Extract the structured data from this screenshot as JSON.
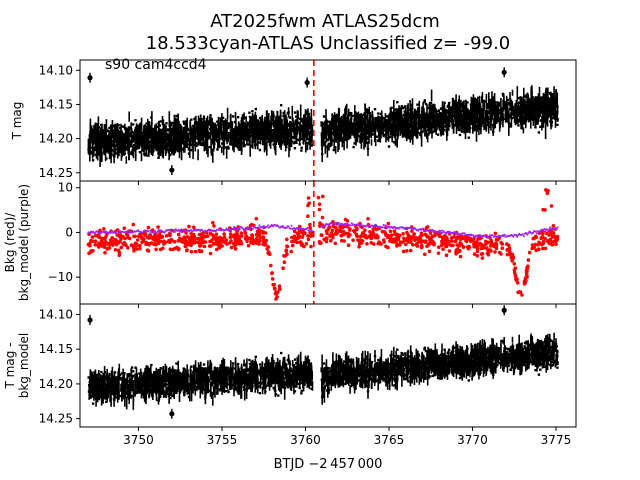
{
  "figure": {
    "title_line1": "AT2025fwm  ATLAS25dcm",
    "title_line2": "18.533cyan-ATLAS Unclassified z= -99.0",
    "annotation": "s90 cam4ccd4",
    "xlabel": "BTJD −2 457 000",
    "colors": {
      "flux": "#000000",
      "bkg": "#ff0000",
      "bkg_model": "#a020f0",
      "marker_line": "#ff0000"
    }
  },
  "chart_data": [
    {
      "type": "scatter",
      "name": "panel-top",
      "ylabel": "T mag",
      "xlim": [
        3746.5,
        3776.2
      ],
      "ylim": [
        14.262,
        14.085
      ],
      "inverted_y": true,
      "xticks": [
        3750,
        3755,
        3760,
        3765,
        3770,
        3775
      ],
      "yticks": [
        14.1,
        14.15,
        14.2,
        14.25
      ],
      "ytick_labels": [
        "14.10",
        "14.15",
        "14.20",
        "14.25"
      ],
      "vline_x": 3760.5,
      "trend": [
        [
          3747.0,
          14.205
        ],
        [
          3760.4,
          14.185
        ],
        [
          3761.0,
          14.19
        ],
        [
          3775.0,
          14.155
        ]
      ],
      "scatter_halfwidth": 0.04,
      "gap": [
        3760.45,
        3760.95
      ],
      "outliers": [
        [
          3747.1,
          14.111
        ],
        [
          3771.9,
          14.103
        ],
        [
          3760.1,
          14.118
        ],
        [
          3752.0,
          14.246
        ]
      ]
    },
    {
      "type": "scatter",
      "name": "panel-middle",
      "ylabel": "Bkg (red)/\nbkg_model (purple)",
      "xlim": [
        3746.5,
        3776.2
      ],
      "ylim": [
        -16,
        11.5
      ],
      "xticks": [
        3750,
        3755,
        3760,
        3765,
        3770,
        3775
      ],
      "yticks": [
        10,
        0,
        -10
      ],
      "ytick_labels": [
        "10",
        "0",
        "−10"
      ],
      "vline_x": 3760.5,
      "bkg_model_level": [
        [
          3747.0,
          0.0
        ],
        [
          3755.0,
          0.5
        ],
        [
          3758.0,
          1.5
        ],
        [
          3760.4,
          0.5
        ],
        [
          3761.5,
          2.0
        ],
        [
          3766.0,
          1.0
        ],
        [
          3771.0,
          -1.0
        ],
        [
          3773.0,
          -0.5
        ],
        [
          3775.0,
          1.0
        ]
      ],
      "dips": [
        [
          3758.3,
          -14
        ],
        [
          3772.9,
          -14
        ]
      ],
      "spikes": [
        [
          3760.2,
          8
        ],
        [
          3761.0,
          9
        ],
        [
          3774.5,
          10
        ]
      ]
    },
    {
      "type": "scatter",
      "name": "panel-bottom",
      "ylabel": "T mag -\nbkg_model",
      "xlim": [
        3746.5,
        3776.2
      ],
      "ylim": [
        14.262,
        14.085
      ],
      "inverted_y": true,
      "xticks": [
        3750,
        3755,
        3760,
        3765,
        3770,
        3775
      ],
      "xtick_labels": [
        "3750",
        "3755",
        "3760",
        "3765",
        "3770",
        "3775"
      ],
      "yticks": [
        14.1,
        14.15,
        14.2,
        14.25
      ],
      "ytick_labels": [
        "14.10",
        "14.15",
        "14.20",
        "14.25"
      ],
      "trend": [
        [
          3747.0,
          14.205
        ],
        [
          3760.4,
          14.185
        ],
        [
          3761.0,
          14.19
        ],
        [
          3775.0,
          14.155
        ]
      ],
      "scatter_halfwidth": 0.035,
      "gap": [
        3760.45,
        3760.95
      ],
      "outliers": [
        [
          3747.1,
          14.108
        ],
        [
          3771.9,
          14.094
        ],
        [
          3752.0,
          14.243
        ]
      ]
    }
  ]
}
